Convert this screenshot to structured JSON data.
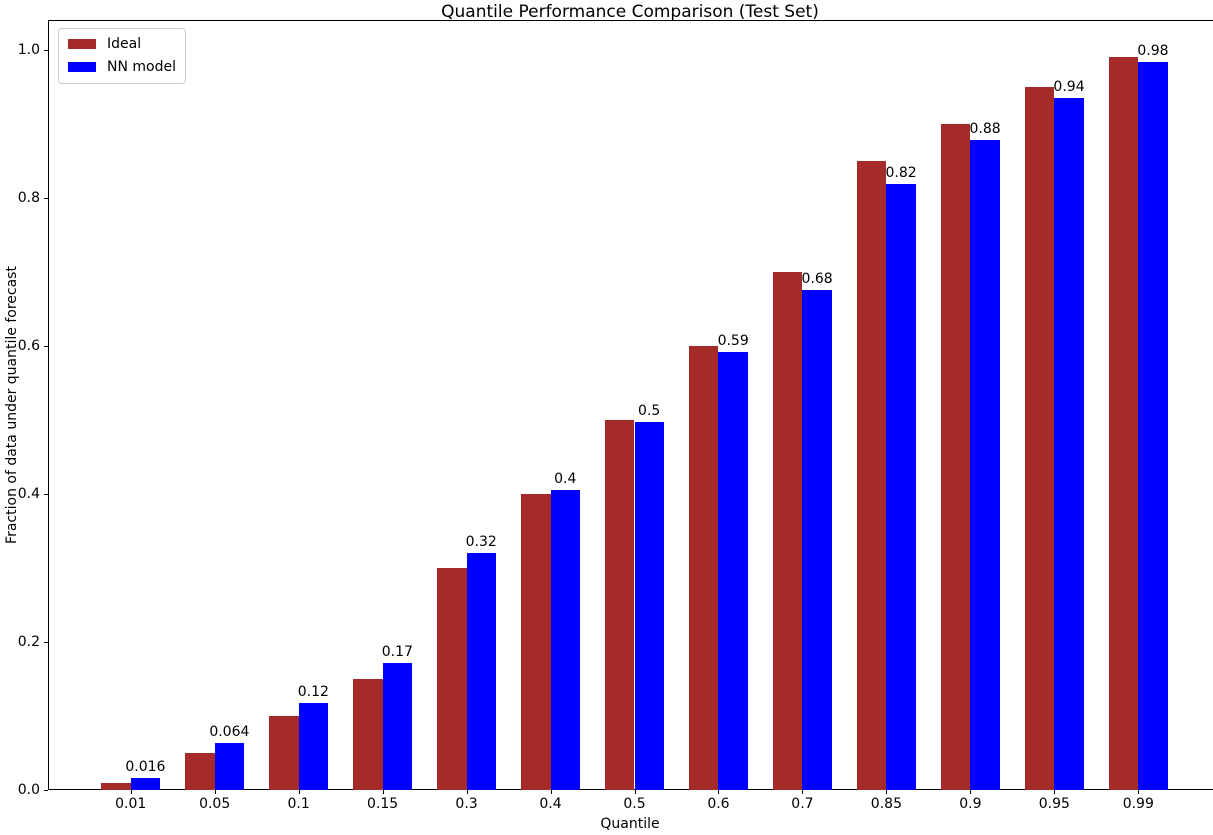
{
  "figure": {
    "background": "#ffffff",
    "spine_color": "#000000",
    "text_color": "#000000"
  },
  "chart_data": {
    "type": "bar",
    "title": "Quantile Performance Comparison (Test Set)",
    "xlabel": "Quantile",
    "ylabel": "Fraction of data under quantile forecast",
    "categories": [
      "0.01",
      "0.05",
      "0.1",
      "0.15",
      "0.3",
      "0.4",
      "0.5",
      "0.6",
      "0.7",
      "0.85",
      "0.9",
      "0.95",
      "0.99"
    ],
    "series": [
      {
        "name": "Ideal",
        "color": "#a52a2a",
        "values": [
          0.01,
          0.05,
          0.1,
          0.15,
          0.3,
          0.4,
          0.5,
          0.6,
          0.7,
          0.85,
          0.9,
          0.95,
          0.99
        ]
      },
      {
        "name": "NN model",
        "color": "#0000ff",
        "values": [
          0.016,
          0.064,
          0.118,
          0.171,
          0.32,
          0.405,
          0.497,
          0.592,
          0.675,
          0.818,
          0.878,
          0.935,
          0.983
        ],
        "bar_labels": [
          "0.016",
          "0.064",
          "0.12",
          "0.17",
          "0.32",
          "0.4",
          "0.5",
          "0.59",
          "0.68",
          "0.82",
          "0.88",
          "0.94",
          "0.98"
        ]
      }
    ],
    "yticks": [
      "0.0",
      "0.2",
      "0.4",
      "0.6",
      "0.8",
      "1.0"
    ],
    "ylim": [
      0,
      1.04
    ],
    "grid": false,
    "legend_position": "upper-left"
  }
}
